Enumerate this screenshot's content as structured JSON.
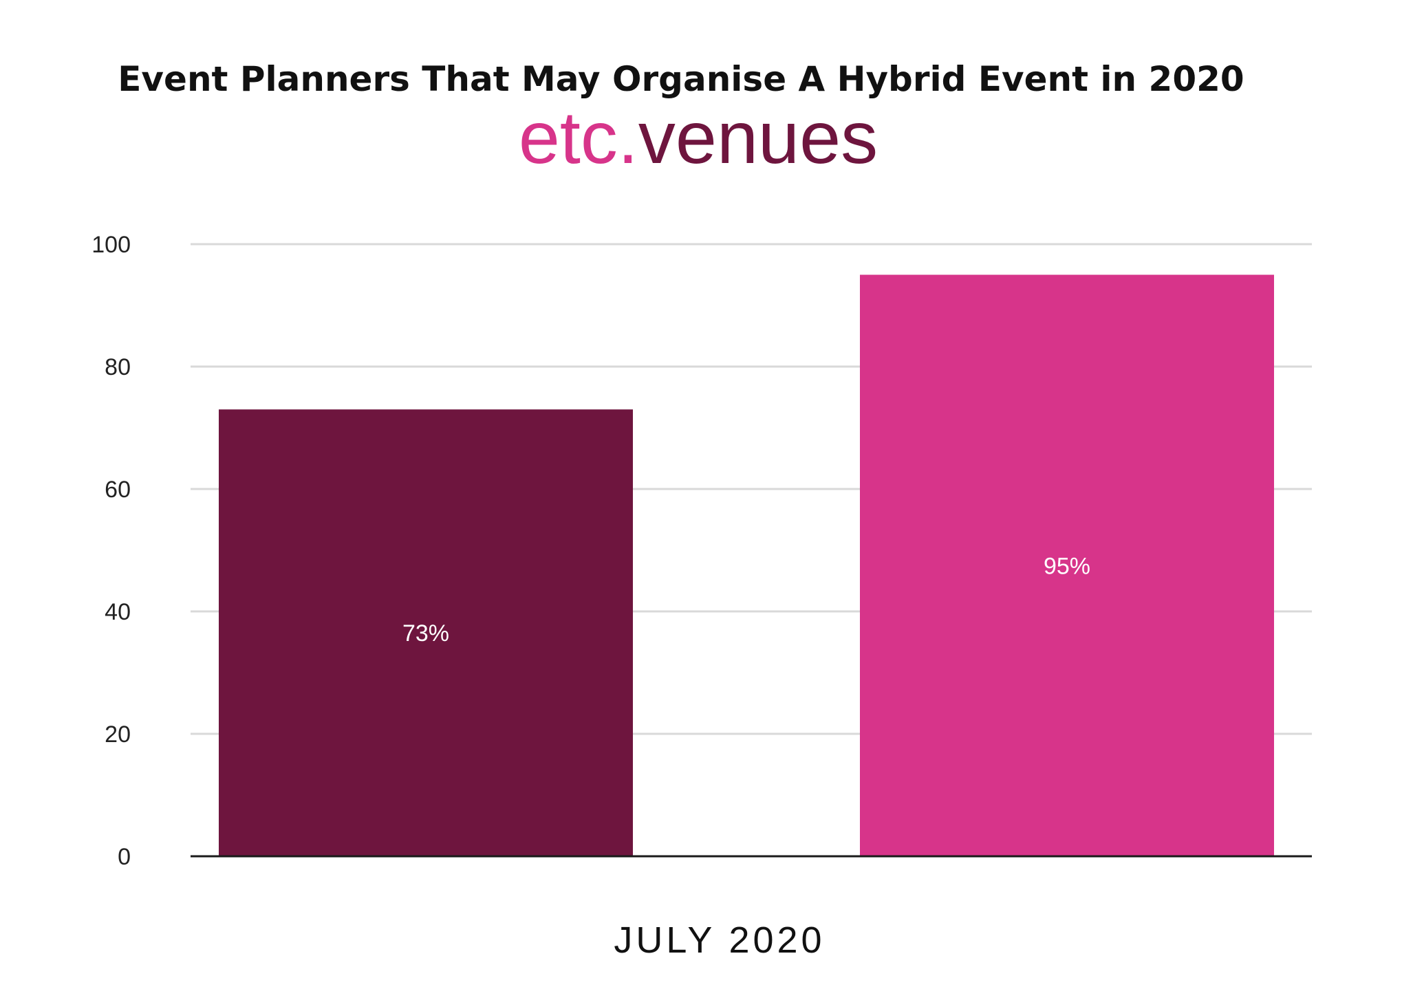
{
  "chart_data": {
    "type": "bar",
    "title": "Event Planners That May Organise A Hybrid Event in 2020",
    "xlabel": "JULY 2020",
    "ylabel": "",
    "ylim": [
      0,
      100
    ],
    "yticks": [
      0,
      20,
      40,
      60,
      80,
      100
    ],
    "grid": true,
    "bars": [
      {
        "value": 73,
        "label": "73%",
        "color": "#6e153e"
      },
      {
        "value": 95,
        "label": "95%",
        "color": "#d7348a"
      }
    ]
  },
  "logo": {
    "part1": "etc.",
    "part2": "venues",
    "color1": "#d7348a",
    "color2": "#6e153e"
  }
}
